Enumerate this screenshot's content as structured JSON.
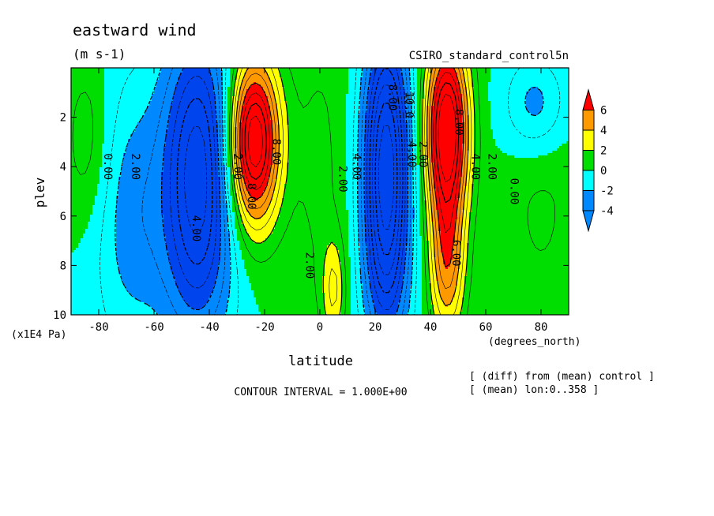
{
  "chart_data": {
    "type": "heatmap",
    "title": "eastward wind",
    "units": "(m s-1)",
    "dataset": "CSIRO_standard_control5n",
    "xlabel": "latitude",
    "xunits": "(degrees_north)",
    "ylabel": "plev",
    "yunits": "(x1E4 Pa)",
    "xlim": [
      -90,
      90
    ],
    "ylim": [
      10,
      0
    ],
    "xticks": [
      -80,
      -60,
      -40,
      -20,
      0,
      20,
      40,
      60,
      80
    ],
    "yticks": [
      2,
      4,
      6,
      8,
      10
    ],
    "contour_interval_text": "CONTOUR INTERVAL = 1.000E+00",
    "notes": [
      "[ (diff) from (mean) control ]",
      "[ (mean) lon:0..358 ]"
    ],
    "colorbar": {
      "labels": [
        "6",
        "4",
        "2",
        "0",
        "-2",
        "-4"
      ],
      "colors": [
        "#ff0000",
        "#ff9900",
        "#ffff00",
        "#00dd00",
        "#00ffff",
        "#0088ff"
      ]
    },
    "contour_labels": [
      {
        "text": "0.00",
        "lat": -78,
        "plev": 4
      },
      {
        "text": "2.00",
        "lat": -68,
        "plev": 4
      },
      {
        "text": "4.00",
        "lat": -46,
        "plev": 6.5
      },
      {
        "text": "2.00",
        "lat": -31,
        "plev": 4
      },
      {
        "text": "8.00",
        "lat": -26,
        "plev": 5.2
      },
      {
        "text": "8.00",
        "lat": -17,
        "plev": 3.4
      },
      {
        "text": "2.00",
        "lat": -5,
        "plev": 8
      },
      {
        "text": "2.00",
        "lat": 7,
        "plev": 4.5
      },
      {
        "text": "4.00",
        "lat": 12,
        "plev": 4
      },
      {
        "text": "8.00",
        "lat": 25,
        "plev": 1.2
      },
      {
        "text": "10.0",
        "lat": 31,
        "plev": 1.5
      },
      {
        "text": "4.00",
        "lat": 32,
        "plev": 3.5
      },
      {
        "text": "2.00",
        "lat": 36,
        "plev": 3.5
      },
      {
        "text": "8.00",
        "lat": 49,
        "plev": 2.2
      },
      {
        "text": "6.00",
        "lat": 48,
        "plev": 7.5
      },
      {
        "text": "4.00",
        "lat": 55,
        "plev": 4
      },
      {
        "text": "2.00",
        "lat": 61,
        "plev": 4
      },
      {
        "text": "0.00",
        "lat": 69,
        "plev": 5
      }
    ],
    "field": {
      "description": "zonal-mean zonal wind difference vs latitude and pressure",
      "features": [
        {
          "kind": "westerly_jet",
          "lat": -24,
          "plev": 3,
          "peak": 9
        },
        {
          "kind": "westerly_jet",
          "lat": 46,
          "plev": 2.5,
          "peak": 9
        },
        {
          "kind": "easterly",
          "lat": -44,
          "plev": 3,
          "peak": -6
        },
        {
          "kind": "easterly",
          "lat": 24,
          "plev": 3,
          "peak": -8
        },
        {
          "kind": "easterly",
          "lat": -70,
          "plev": 6,
          "peak": -2
        }
      ]
    }
  }
}
